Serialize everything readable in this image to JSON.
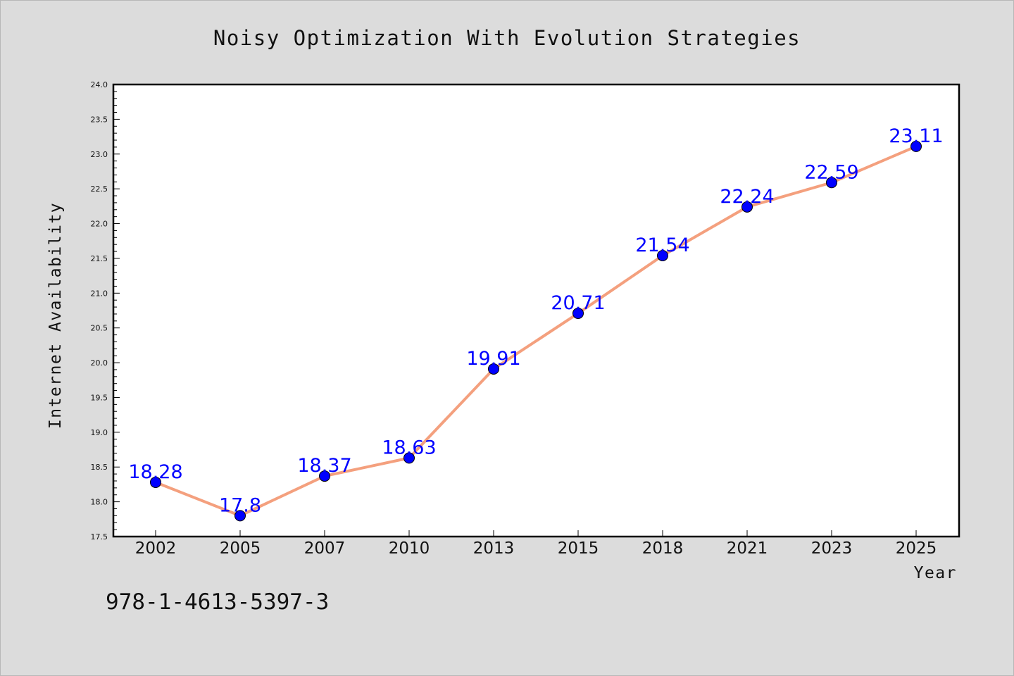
{
  "chart_data": {
    "type": "line",
    "title": "Noisy Optimization With Evolution Strategies",
    "xlabel": "Year",
    "ylabel": "Internet Availability",
    "categories": [
      "2002",
      "2005",
      "2007",
      "2010",
      "2013",
      "2015",
      "2018",
      "2021",
      "2023",
      "2025"
    ],
    "values": [
      18.28,
      17.8,
      18.37,
      18.63,
      19.91,
      20.71,
      21.54,
      22.24,
      22.59,
      23.11
    ],
    "data_labels": [
      "18.28",
      "17.8",
      "18.37",
      "18.63",
      "19.91",
      "20.71",
      "21.54",
      "22.24",
      "22.59",
      "23.11"
    ],
    "ylim": [
      17.5,
      24.0
    ],
    "y_ticks": [
      "17.5",
      "18.0",
      "18.5",
      "19.0",
      "19.5",
      "20.0",
      "20.5",
      "21.0",
      "21.5",
      "22.0",
      "22.5",
      "23.0",
      "23.5",
      "24.0"
    ],
    "y_minor_step": 0.1,
    "grid": false,
    "legend": "none",
    "line_color": "#f4a07e",
    "marker_color": "#0000ff",
    "label_color": "#0000ff",
    "plot_background": "#ffffff",
    "page_background": "#dcdcdc"
  },
  "footer": {
    "isbn": "978-1-4613-5397-3"
  }
}
